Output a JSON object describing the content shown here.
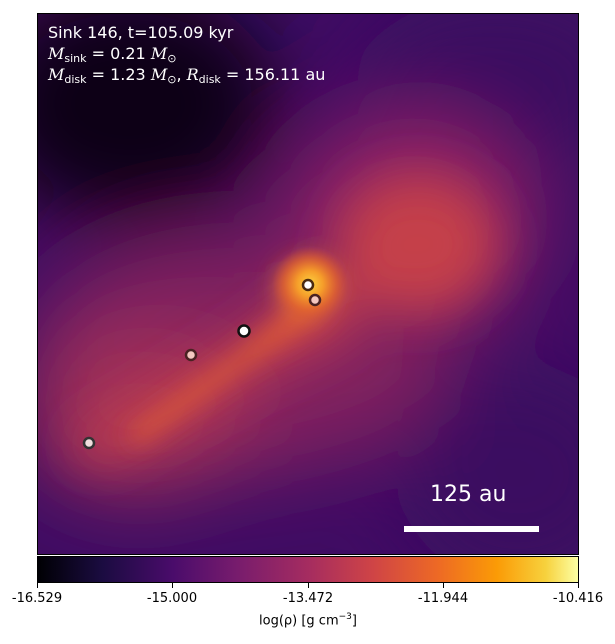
{
  "sink_label": "Sink 146, t=105.09 kyr",
  "m_sink_value": "0.21",
  "m_disk_value": "1.23",
  "r_disk_value": "156.11",
  "unit_msun": "M",
  "unit_au": "au",
  "scale_label": "125 au",
  "colorbar": {
    "ticks": [
      "-16.529",
      "-15.000",
      "-13.472",
      "-11.944",
      "-10.416"
    ],
    "label": "log(ρ) [g cm",
    "label_exp": "−3",
    "label_end": "]",
    "colormap": "inferno"
  },
  "colors": {
    "bar": "#ffffff"
  }
}
